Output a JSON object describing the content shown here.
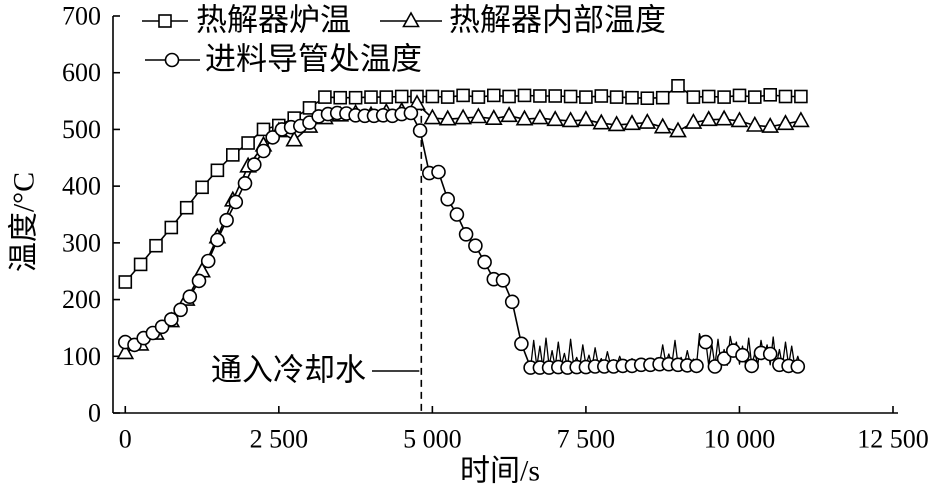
{
  "chart_data": {
    "type": "line",
    "xlabel": "时间/s",
    "ylabel": "温度/°C",
    "xlim": [
      -200,
      12500
    ],
    "ylim": [
      0,
      700
    ],
    "x_ticks": [
      0,
      2500,
      5000,
      7500,
      10000,
      12500
    ],
    "x_tick_labels": [
      "0",
      "2 500",
      "5 000",
      "7 500",
      "10 000",
      "12 500"
    ],
    "y_ticks": [
      0,
      100,
      200,
      300,
      400,
      500,
      600,
      700
    ],
    "y_tick_labels": [
      "0",
      "100",
      "200",
      "300",
      "400",
      "500",
      "600",
      "700"
    ],
    "grid": false,
    "legend": {
      "placement": "top-left"
    },
    "series": [
      {
        "name": "热解器炉温",
        "marker": "square",
        "color": "#000000",
        "marker_fill": "#ffffff",
        "x": [
          0,
          250,
          500,
          750,
          1000,
          1250,
          1500,
          1750,
          2000,
          2250,
          2500,
          2750,
          3000,
          3250,
          3500,
          3750,
          4000,
          4250,
          4500,
          4750,
          5000,
          5250,
          5500,
          5750,
          6000,
          6250,
          6500,
          6750,
          7000,
          7250,
          7500,
          7750,
          8000,
          8250,
          8500,
          8750,
          9000,
          9250,
          9500,
          9750,
          10000,
          10250,
          10500,
          10750,
          11000
        ],
        "y": [
          231,
          262,
          295,
          327,
          362,
          398,
          428,
          455,
          476,
          500,
          507,
          520,
          538,
          557,
          556,
          556,
          557,
          557,
          558,
          558,
          558,
          557,
          560,
          557,
          560,
          558,
          560,
          559,
          559,
          558,
          557,
          559,
          557,
          556,
          555,
          556,
          577,
          557,
          558,
          557,
          560,
          557,
          561,
          558,
          558
        ]
      },
      {
        "name": "热解器内部温度",
        "marker": "triangle",
        "color": "#000000",
        "marker_fill": "#ffffff",
        "x": [
          0,
          250,
          500,
          750,
          1000,
          1250,
          1500,
          1750,
          2000,
          2250,
          2500,
          2750,
          3000,
          3250,
          3500,
          3750,
          4000,
          4250,
          4500,
          4750,
          5000,
          5250,
          5500,
          5750,
          6000,
          6250,
          6500,
          6750,
          7000,
          7250,
          7500,
          7750,
          8000,
          8250,
          8500,
          8750,
          9000,
          9250,
          9500,
          9750,
          10000,
          10250,
          10500,
          10750,
          11000
        ],
        "y": [
          106,
          121,
          140,
          162,
          200,
          250,
          310,
          375,
          435,
          472,
          497,
          481,
          505,
          520,
          525,
          528,
          525,
          530,
          532,
          545,
          520,
          518,
          520,
          522,
          519,
          524,
          518,
          520,
          517,
          515,
          517,
          511,
          508,
          510,
          512,
          504,
          497,
          512,
          517,
          518,
          515,
          507,
          505,
          510,
          515
        ]
      },
      {
        "name": "进料导管处温度",
        "marker": "circle",
        "color": "#000000",
        "marker_fill": "#ffffff",
        "x": [
          0,
          150,
          300,
          450,
          600,
          750,
          900,
          1050,
          1200,
          1350,
          1500,
          1650,
          1800,
          1950,
          2100,
          2250,
          2400,
          2550,
          2700,
          2850,
          3000,
          3150,
          3300,
          3450,
          3600,
          3750,
          3900,
          4050,
          4200,
          4350,
          4500,
          4650,
          4800,
          4950,
          5100,
          5250,
          5400,
          5550,
          5700,
          5850,
          6000,
          6150,
          6300,
          6450,
          6600,
          6750,
          6900,
          7050,
          7200,
          7350,
          7500,
          7650,
          7800,
          7950,
          8100,
          8250,
          8400,
          8550,
          8700,
          8850,
          9000,
          9150,
          9300,
          9450,
          9600,
          9750,
          9900,
          10050,
          10200,
          10350,
          10500,
          10650,
          10800,
          10950
        ],
        "y": [
          125,
          120,
          132,
          141,
          152,
          165,
          182,
          205,
          233,
          268,
          305,
          340,
          372,
          405,
          438,
          462,
          486,
          500,
          504,
          506,
          512,
          523,
          527,
          529,
          528,
          525,
          524,
          524,
          525,
          524,
          527,
          529,
          498,
          423,
          425,
          377,
          350,
          315,
          295,
          266,
          236,
          234,
          196,
          122,
          80,
          80,
          80,
          81,
          80,
          81,
          81,
          82,
          82,
          82,
          83,
          83,
          85,
          85,
          86,
          86,
          85,
          84,
          83,
          125,
          82,
          96,
          110,
          102,
          83,
          106,
          104,
          85,
          83,
          82
        ],
        "trace": {
          "x": [
            6600,
            6650,
            6700,
            6750,
            6800,
            6850,
            6900,
            6950,
            7000,
            7050,
            7100,
            7150,
            7200,
            7250,
            7300,
            7350,
            7400,
            7450,
            7500,
            7550,
            7600,
            7650,
            7700,
            7750,
            7800,
            7850,
            7900,
            7950,
            8000,
            8050,
            8100,
            8150,
            8200,
            8250,
            8300,
            8350,
            8400,
            8450,
            8500,
            8550,
            8600,
            8650,
            8700,
            8750,
            8800,
            8850,
            8900,
            8950,
            9000,
            9050,
            9100,
            9150,
            9200,
            9250,
            9300,
            9350,
            9400,
            9450,
            9500,
            9550,
            9600,
            9650,
            9700,
            9750,
            9800,
            9850,
            9900,
            9950,
            10000,
            10050,
            10100,
            10150,
            10200,
            10250,
            10300,
            10350,
            10400,
            10450,
            10500,
            10550,
            10600,
            10650,
            10700,
            10750,
            10800,
            10850,
            10900,
            10950,
            11000
          ],
          "y": [
            80,
            128,
            82,
            118,
            80,
            132,
            83,
            110,
            81,
            125,
            84,
            105,
            80,
            130,
            85,
            98,
            82,
            120,
            84,
            102,
            81,
            115,
            86,
            96,
            83,
            108,
            85,
            94,
            84,
            100,
            86,
            92,
            85,
            96,
            86,
            90,
            87,
            95,
            86,
            92,
            88,
            97,
            87,
            120,
            88,
            104,
            86,
            128,
            85,
            98,
            84,
            110,
            86,
            95,
            84,
            140,
            118,
            128,
            84,
            122,
            83,
            130,
            86,
            112,
            84,
            135,
            110,
            125,
            86,
            118,
            85,
            132,
            84,
            105,
            86,
            128,
            100,
            120,
            85,
            134,
            84,
            112,
            83,
            125,
            84,
            118,
            83,
            100,
            82
          ]
        }
      }
    ],
    "annotations": [
      {
        "text": "通入冷却水",
        "x": 4820,
        "y_range": [
          0,
          545
        ],
        "line_style": "dashed"
      }
    ]
  }
}
